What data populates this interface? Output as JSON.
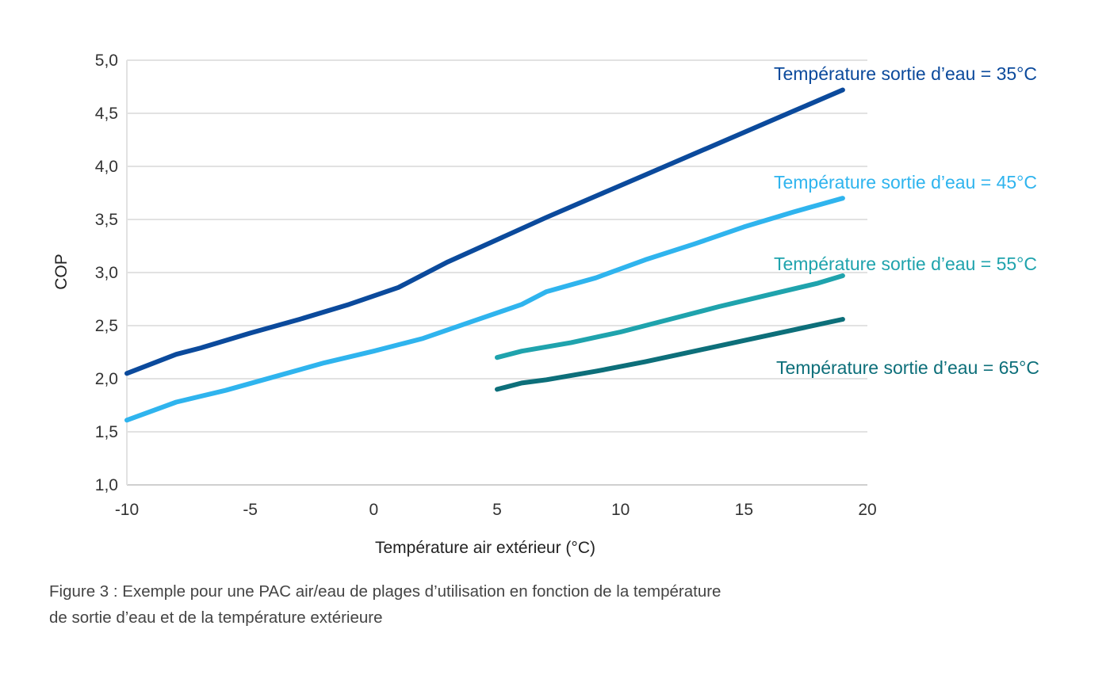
{
  "chart_data": {
    "type": "line",
    "xlabel": "Température air extérieur (°C)",
    "ylabel": "COP",
    "xlim": [
      -10,
      20
    ],
    "ylim": [
      1.0,
      5.0
    ],
    "x_ticks": [
      -10,
      -5,
      0,
      5,
      10,
      15,
      20
    ],
    "x_tick_labels": [
      "-10",
      "-5",
      "0",
      "5",
      "10",
      "15",
      "20"
    ],
    "y_ticks": [
      1.0,
      1.5,
      2.0,
      2.5,
      3.0,
      3.5,
      4.0,
      4.5,
      5.0
    ],
    "y_tick_labels": [
      "1,0",
      "1,5",
      "2,0",
      "2,5",
      "3,0",
      "3,5",
      "4,0",
      "4,5",
      "5,0"
    ],
    "grid": "horizontal",
    "series": [
      {
        "name": "Température sortie d’eau = 35°C",
        "color": "#0b4a9c",
        "points": [
          [
            -10,
            2.05
          ],
          [
            -8,
            2.23
          ],
          [
            -7,
            2.29
          ],
          [
            -5,
            2.43
          ],
          [
            -3,
            2.56
          ],
          [
            -1,
            2.7
          ],
          [
            1,
            2.86
          ],
          [
            3,
            3.1
          ],
          [
            5,
            3.31
          ],
          [
            7,
            3.52
          ],
          [
            9,
            3.72
          ],
          [
            11,
            3.92
          ],
          [
            13,
            4.12
          ],
          [
            15,
            4.32
          ],
          [
            17,
            4.52
          ],
          [
            19,
            4.72
          ]
        ]
      },
      {
        "name": "Température sortie d’eau = 45°C",
        "color": "#2fb4ee",
        "points": [
          [
            -10,
            1.61
          ],
          [
            -8,
            1.78
          ],
          [
            -6,
            1.89
          ],
          [
            -4,
            2.02
          ],
          [
            -2,
            2.15
          ],
          [
            0,
            2.26
          ],
          [
            2,
            2.38
          ],
          [
            4,
            2.54
          ],
          [
            6,
            2.7
          ],
          [
            7,
            2.82
          ],
          [
            9,
            2.95
          ],
          [
            11,
            3.12
          ],
          [
            13,
            3.27
          ],
          [
            15,
            3.43
          ],
          [
            17,
            3.57
          ],
          [
            19,
            3.7
          ]
        ]
      },
      {
        "name": "Température sortie d’eau = 55°C",
        "color": "#1fa3ad",
        "points": [
          [
            5,
            2.2
          ],
          [
            6,
            2.26
          ],
          [
            8,
            2.34
          ],
          [
            10,
            2.44
          ],
          [
            12,
            2.56
          ],
          [
            14,
            2.68
          ],
          [
            16,
            2.79
          ],
          [
            18,
            2.9
          ],
          [
            19,
            2.97
          ]
        ]
      },
      {
        "name": "Température sortie d’eau = 65°C",
        "color": "#0d6f7a",
        "points": [
          [
            5,
            1.9
          ],
          [
            6,
            1.96
          ],
          [
            7,
            1.99
          ],
          [
            9,
            2.07
          ],
          [
            11,
            2.16
          ],
          [
            13,
            2.26
          ],
          [
            15,
            2.36
          ],
          [
            17,
            2.46
          ],
          [
            19,
            2.56
          ]
        ]
      }
    ]
  },
  "caption_lines": [
    "Figure 3 : Exemple pour une PAC air/eau de plages d’utilisation en fonction de la température",
    "de sortie d’eau et de la température extérieure"
  ]
}
